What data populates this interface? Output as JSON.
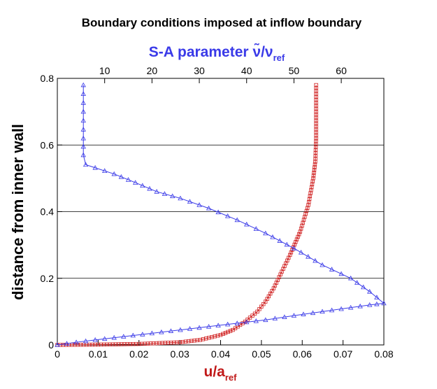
{
  "chart_data": {
    "type": "line",
    "title": "Boundary conditions imposed at inflow boundary",
    "ylabel": "distance from inner wall",
    "bottom_axis": {
      "label_main": "u/a",
      "label_sub": "ref",
      "color": "#c01818",
      "range": [
        0,
        0.08
      ],
      "ticks": [
        "0",
        "0.01",
        "0.02",
        "0.03",
        "0.04",
        "0.05",
        "0.06",
        "0.07",
        "0.08"
      ]
    },
    "top_axis": {
      "label_main": "S-A parameter ν̃/ν",
      "label_sub": "ref",
      "color": "#3a3ae8",
      "range": [
        0,
        69
      ],
      "ticks": [
        "10",
        "20",
        "30",
        "40",
        "50",
        "60"
      ]
    },
    "y_axis": {
      "range": [
        0,
        0.8
      ],
      "ticks": [
        "0",
        "0.2",
        "0.4",
        "0.6",
        "0.8"
      ],
      "gridlines": [
        0.2,
        0.4,
        0.6
      ]
    },
    "series": [
      {
        "axis": "bottom",
        "marker": "square",
        "color": "#d02020",
        "x": [
          0.0,
          0.01,
          0.02,
          0.03,
          0.035,
          0.04,
          0.043,
          0.046,
          0.049,
          0.051,
          0.053,
          0.055,
          0.057,
          0.0595,
          0.0615,
          0.0627,
          0.0632,
          0.0634,
          0.0634
        ],
        "y": [
          0.0,
          0.001,
          0.003,
          0.008,
          0.015,
          0.03,
          0.045,
          0.07,
          0.1,
          0.13,
          0.17,
          0.22,
          0.27,
          0.34,
          0.42,
          0.5,
          0.55,
          0.62,
          0.78
        ]
      },
      {
        "axis": "top",
        "marker": "triangle",
        "color": "#3a3ae8",
        "x": [
          0,
          4,
          8,
          14,
          20,
          26,
          32,
          38,
          44,
          50,
          56,
          62,
          66,
          69,
          66,
          62,
          56,
          50,
          44,
          38,
          32,
          26,
          21,
          16.5,
          12,
          6,
          5.5,
          5.5,
          5.5
        ],
        "y": [
          0.0,
          0.008,
          0.015,
          0.025,
          0.035,
          0.045,
          0.055,
          0.065,
          0.075,
          0.088,
          0.1,
          0.112,
          0.12,
          0.125,
          0.16,
          0.2,
          0.24,
          0.29,
          0.335,
          0.375,
          0.41,
          0.44,
          0.46,
          0.487,
          0.513,
          0.541,
          0.57,
          0.62,
          0.78
        ]
      }
    ]
  }
}
